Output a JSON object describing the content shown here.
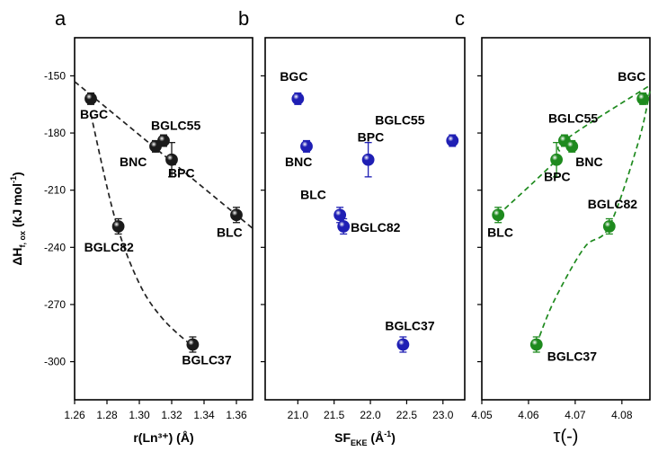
{
  "chart_data": [
    {
      "type": "scatter",
      "panel_letter": "a",
      "xlabel": "r(Ln³⁺) (Å)",
      "ylabel": "ΔH",
      "ylabel_sub": "f, ox",
      "ylabel_unit": " (kJ mol",
      "ylabel_sup": "-1",
      "ylabel_close": ")",
      "xlim": [
        1.26,
        1.37
      ],
      "ylim": [
        -320,
        -130
      ],
      "xticks": [
        1.26,
        1.28,
        1.3,
        1.32,
        1.34,
        1.36
      ],
      "xtick_labels": [
        "1.26",
        "1.28",
        "1.30",
        "1.32",
        "1.34",
        "1.36"
      ],
      "yticks": [
        -150,
        -180,
        -210,
        -240,
        -270,
        -300
      ],
      "ytick_labels": [
        "-150",
        "-180",
        "-210",
        "-240",
        "-270",
        "-300"
      ],
      "color": "#1a1a1a",
      "points": [
        {
          "label": "BGC",
          "x": 1.27,
          "y": -162,
          "err": 3
        },
        {
          "label": "BGLC55",
          "x": 1.315,
          "y": -184,
          "err": 3
        },
        {
          "label": "BNC",
          "x": 1.31,
          "y": -187,
          "err": 3
        },
        {
          "label": "BPC",
          "x": 1.32,
          "y": -194,
          "err": 9
        },
        {
          "label": "BLC",
          "x": 1.36,
          "y": -223,
          "err": 4
        },
        {
          "label": "BGLC82",
          "x": 1.287,
          "y": -229,
          "err": 4
        },
        {
          "label": "BGLC37",
          "x": 1.333,
          "y": -291,
          "err": 4
        }
      ],
      "fits": [
        [
          [
            1.26,
            -153
          ],
          [
            1.37,
            -230
          ]
        ],
        [
          [
            1.27,
            -170
          ],
          [
            1.285,
            -225
          ],
          [
            1.3,
            -259
          ],
          [
            1.315,
            -278
          ],
          [
            1.333,
            -292
          ]
        ]
      ]
    },
    {
      "type": "scatter",
      "panel_letter": "b",
      "xlabel": "SF",
      "xlabel_sub": "EKE",
      "xlabel_unit": " (Å",
      "xlabel_sup": "-1",
      "xlabel_close": ")",
      "xlim": [
        20.55,
        23.3
      ],
      "ylim": [
        -320,
        -130
      ],
      "xticks": [
        21.0,
        21.5,
        22.0,
        22.5,
        23.0
      ],
      "xtick_labels": [
        "21.0",
        "21.5",
        "22.0",
        "22.5",
        "23.0"
      ],
      "color": "#1f1fb4",
      "points": [
        {
          "label": "BGC",
          "x": 21.0,
          "y": -162,
          "err": 3
        },
        {
          "label": "BNC",
          "x": 21.12,
          "y": -187,
          "err": 3
        },
        {
          "label": "BPC",
          "x": 21.97,
          "y": -194,
          "err": 9
        },
        {
          "label": "BGLC55",
          "x": 23.13,
          "y": -184,
          "err": 3
        },
        {
          "label": "BLC",
          "x": 21.58,
          "y": -223,
          "err": 4
        },
        {
          "label": "BGLC82",
          "x": 21.63,
          "y": -229,
          "err": 4
        },
        {
          "label": "BGLC37",
          "x": 22.45,
          "y": -291,
          "err": 4
        }
      ],
      "fits": []
    },
    {
      "type": "scatter",
      "panel_letter": "c",
      "xlabel": "τ(-)",
      "xlim": [
        4.05,
        4.086
      ],
      "ylim": [
        -320,
        -130
      ],
      "xticks": [
        4.05,
        4.06,
        4.07,
        4.08
      ],
      "xtick_labels": [
        "4.05",
        "4.06",
        "4.07",
        "4.08"
      ],
      "color": "#1e8a1e",
      "points": [
        {
          "label": "BGC",
          "x": 4.0845,
          "y": -162,
          "err": 3
        },
        {
          "label": "BGLC55",
          "x": 4.0677,
          "y": -184,
          "err": 3
        },
        {
          "label": "BNC",
          "x": 4.0693,
          "y": -187,
          "err": 3
        },
        {
          "label": "BPC",
          "x": 4.066,
          "y": -194,
          "err": 9
        },
        {
          "label": "BLC",
          "x": 4.0535,
          "y": -223,
          "err": 4
        },
        {
          "label": "BGLC82",
          "x": 4.0773,
          "y": -229,
          "err": 4
        },
        {
          "label": "BGLC37",
          "x": 4.0617,
          "y": -291,
          "err": 4
        }
      ],
      "fits": [
        [
          [
            4.0535,
            -223
          ],
          [
            4.066,
            -194
          ],
          [
            4.0677,
            -184
          ],
          [
            4.086,
            -155
          ]
        ],
        [
          [
            4.0617,
            -291
          ],
          [
            4.0655,
            -268
          ],
          [
            4.072,
            -240
          ],
          [
            4.0773,
            -229
          ],
          [
            4.0835,
            -185
          ],
          [
            4.086,
            -158
          ]
        ]
      ]
    }
  ]
}
